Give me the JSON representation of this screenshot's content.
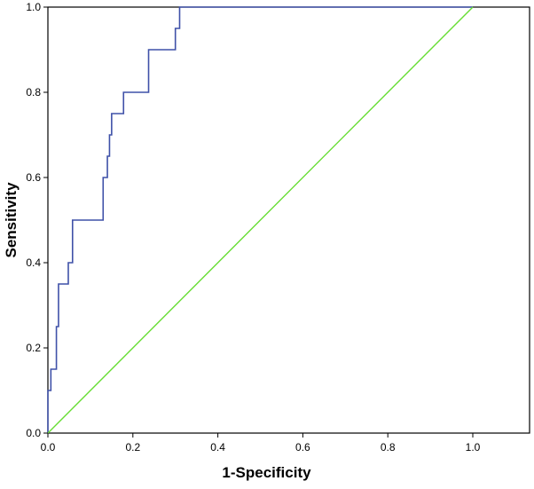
{
  "chart_data": {
    "type": "line",
    "title": "",
    "xlabel": "1-Specificity",
    "ylabel": "Sensitivity",
    "xlim": [
      0.0,
      1.0
    ],
    "ylim": [
      0.0,
      1.0
    ],
    "x_ticks": [
      "0.0",
      "0.2",
      "0.4",
      "0.6",
      "0.8",
      "1.0"
    ],
    "y_ticks": [
      "0.0",
      "0.2",
      "0.4",
      "0.6",
      "0.8",
      "1.0"
    ],
    "grid": false,
    "legend": "none",
    "series": [
      {
        "color": "#3f51a8",
        "step": true,
        "points": [
          [
            0.0,
            0.0
          ],
          [
            0.0,
            0.1
          ],
          [
            0.007,
            0.1
          ],
          [
            0.007,
            0.15
          ],
          [
            0.02,
            0.15
          ],
          [
            0.02,
            0.25
          ],
          [
            0.025,
            0.25
          ],
          [
            0.025,
            0.35
          ],
          [
            0.048,
            0.35
          ],
          [
            0.048,
            0.4
          ],
          [
            0.058,
            0.4
          ],
          [
            0.058,
            0.5
          ],
          [
            0.13,
            0.5
          ],
          [
            0.13,
            0.6
          ],
          [
            0.14,
            0.6
          ],
          [
            0.14,
            0.65
          ],
          [
            0.145,
            0.65
          ],
          [
            0.145,
            0.7
          ],
          [
            0.15,
            0.7
          ],
          [
            0.15,
            0.75
          ],
          [
            0.178,
            0.75
          ],
          [
            0.178,
            0.8
          ],
          [
            0.237,
            0.8
          ],
          [
            0.237,
            0.9
          ],
          [
            0.3,
            0.9
          ],
          [
            0.3,
            0.95
          ],
          [
            0.31,
            0.95
          ],
          [
            0.31,
            1.0
          ],
          [
            1.0,
            1.0
          ]
        ]
      },
      {
        "color": "#66dd33",
        "step": false,
        "points": [
          [
            0.0,
            0.0
          ],
          [
            1.0,
            1.0
          ]
        ]
      }
    ]
  }
}
